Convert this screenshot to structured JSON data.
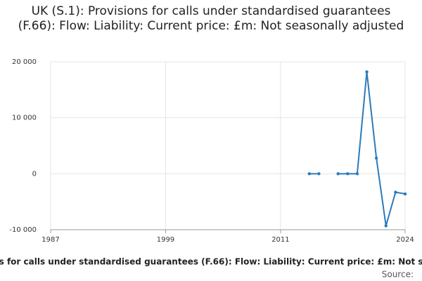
{
  "chart_data": {
    "type": "line",
    "title": "UK (S.1): Provisions for calls under standardised guarantees (F.66): Flow: Liability: Current price: £m: Not seasonally adjusted",
    "x": [
      2014,
      2015,
      2016,
      2017,
      2018,
      2019,
      2020,
      2021,
      2022,
      2023,
      2024
    ],
    "series": [
      {
        "name": "UK (S.1): Provisions for calls under standardised guarantees (F.66): Flow: Liability: Current price: £m: Not seasonally adjusted",
        "color": "#2b7bba",
        "values": [
          0,
          0,
          null,
          0,
          0,
          0,
          18200,
          2800,
          -9300,
          -3300,
          -3600
        ]
      }
    ],
    "xlim": [
      1987,
      2024
    ],
    "xticks": [
      1987,
      1999,
      2011,
      2024
    ],
    "ylim": [
      -10000,
      20000
    ],
    "yticks": [
      {
        "value": -10000,
        "label": "-10 000"
      },
      0,
      {
        "value": 10000,
        "label": "10 000"
      },
      {
        "value": 20000,
        "label": "20 000"
      }
    ],
    "grid": true,
    "source": "Source:"
  }
}
